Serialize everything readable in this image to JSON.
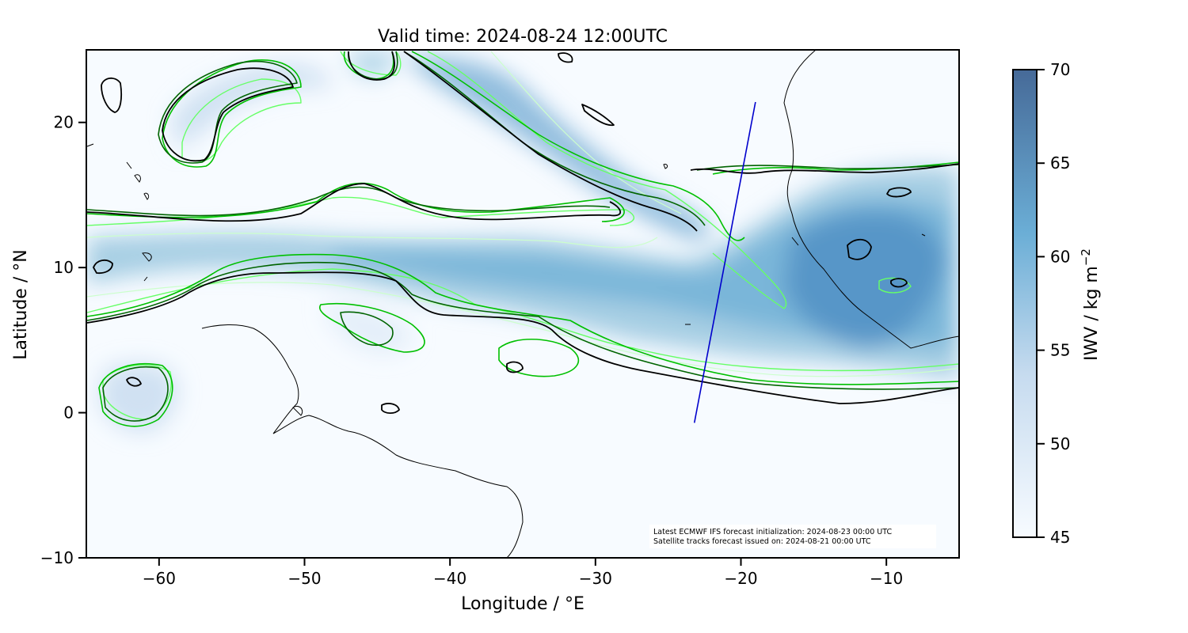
{
  "figure": {
    "title": "Valid time: 2024-08-24 12:00UTC",
    "xlabel": "Longitude / °E",
    "ylabel": "Latitude / °N",
    "x_range": [
      -65,
      -5
    ],
    "y_range": [
      -10,
      25
    ],
    "x_ticks": [
      -60,
      -50,
      -40,
      -30,
      -20,
      -10
    ],
    "x_tick_labels": [
      "−60",
      "−50",
      "−40",
      "−30",
      "−20",
      "−10"
    ],
    "y_ticks": [
      -10,
      0,
      10,
      20
    ],
    "y_tick_labels": [
      "−10",
      "0",
      "10",
      "20"
    ]
  },
  "colorbar": {
    "label": "IWV / kg m",
    "label_superscript": "−2",
    "range": [
      45,
      70
    ],
    "ticks": [
      45,
      50,
      55,
      60,
      65,
      70
    ],
    "tick_labels": [
      "45",
      "50",
      "55",
      "60",
      "65",
      "70"
    ],
    "color_low": "#f7fbff",
    "color_high": "#466a98"
  },
  "annotation": {
    "line1": "Latest ECMWF IFS forecast initialization: 2024-08-23 00:00 UTC",
    "line2": "Satellite tracks forecast issued on: 2024-08-21 00:00 UTC"
  },
  "satellite_track": {
    "color": "#0000cc",
    "points": [
      [
        -23.2,
        -0.7
      ],
      [
        -19.0,
        21.4
      ]
    ]
  },
  "colors": {
    "contour_black": "#000000",
    "contour_dark_green": "#006400",
    "contour_green": "#00c000",
    "contour_light_green": "#66ff66",
    "contour_pale": "#ccffcc",
    "coastline": "#000000"
  }
}
